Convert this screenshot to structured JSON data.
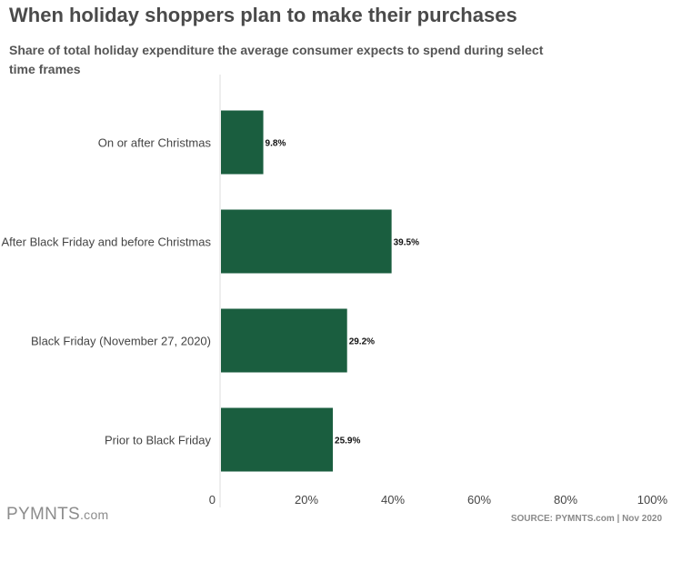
{
  "title": "When holiday shoppers plan to make their purchases",
  "subtitle": "Share of total holiday expenditure the average consumer expects to spend during select time frames",
  "logo": {
    "main": "PYMNTS",
    "suffix": ".com"
  },
  "source": "SOURCE: PYMNTS.com  |  Nov 2020",
  "colors": {
    "bar": "#1a5e3f",
    "axis": "#dddddd",
    "label": "#444444"
  },
  "chart_data": {
    "type": "bar",
    "orientation": "horizontal",
    "categories": [
      "On or after Christmas",
      "After Black Friday and before Christmas",
      "Black Friday (November 27, 2020)",
      "Prior to Black Friday"
    ],
    "values": [
      9.8,
      39.5,
      29.2,
      25.9
    ],
    "value_labels": [
      "9.8%",
      "39.5%",
      "29.2%",
      "25.9%"
    ],
    "xlim": [
      0,
      100
    ],
    "xticks": [
      0,
      20,
      40,
      60,
      80,
      100
    ],
    "xtick_labels": [
      "0",
      "20%",
      "40%",
      "60%",
      "80%",
      "100%"
    ],
    "grid": false
  }
}
